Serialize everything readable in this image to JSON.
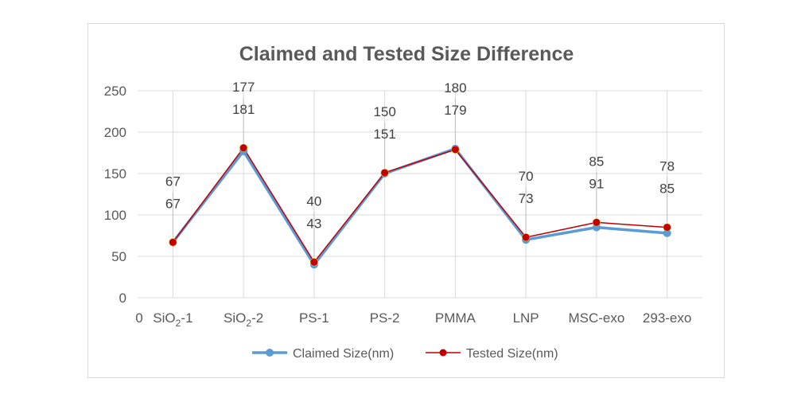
{
  "chart_data": {
    "type": "line",
    "title": "Claimed and Tested Size Difference",
    "xlabel": "",
    "ylabel": "",
    "ylim": [
      0,
      250
    ],
    "yticks": [
      0,
      50,
      100,
      150,
      200,
      250
    ],
    "grid": true,
    "legend_position": "bottom",
    "x_extra_label": "0",
    "categories": [
      {
        "base": "SiO",
        "sub": "2",
        "suffix": "-1"
      },
      {
        "base": "SiO",
        "sub": "2",
        "suffix": "-2"
      },
      {
        "base": "PS-1",
        "sub": "",
        "suffix": ""
      },
      {
        "base": "PS-2",
        "sub": "",
        "suffix": ""
      },
      {
        "base": "PMMA",
        "sub": "",
        "suffix": ""
      },
      {
        "base": "LNP",
        "sub": "",
        "suffix": ""
      },
      {
        "base": "MSC-exo",
        "sub": "",
        "suffix": ""
      },
      {
        "base": "293-exo",
        "sub": "",
        "suffix": ""
      }
    ],
    "series": [
      {
        "name": "Claimed Size(nm)",
        "color": "#5b9bd5",
        "marker_fill": "#5b9bd5",
        "values": [
          67,
          177,
          40,
          150,
          180,
          70,
          85,
          78
        ]
      },
      {
        "name": "Tested Size(nm)",
        "color": "#c00000",
        "marker_fill": "#c00000",
        "values": [
          67,
          181,
          43,
          151,
          179,
          73,
          91,
          85
        ]
      }
    ]
  }
}
